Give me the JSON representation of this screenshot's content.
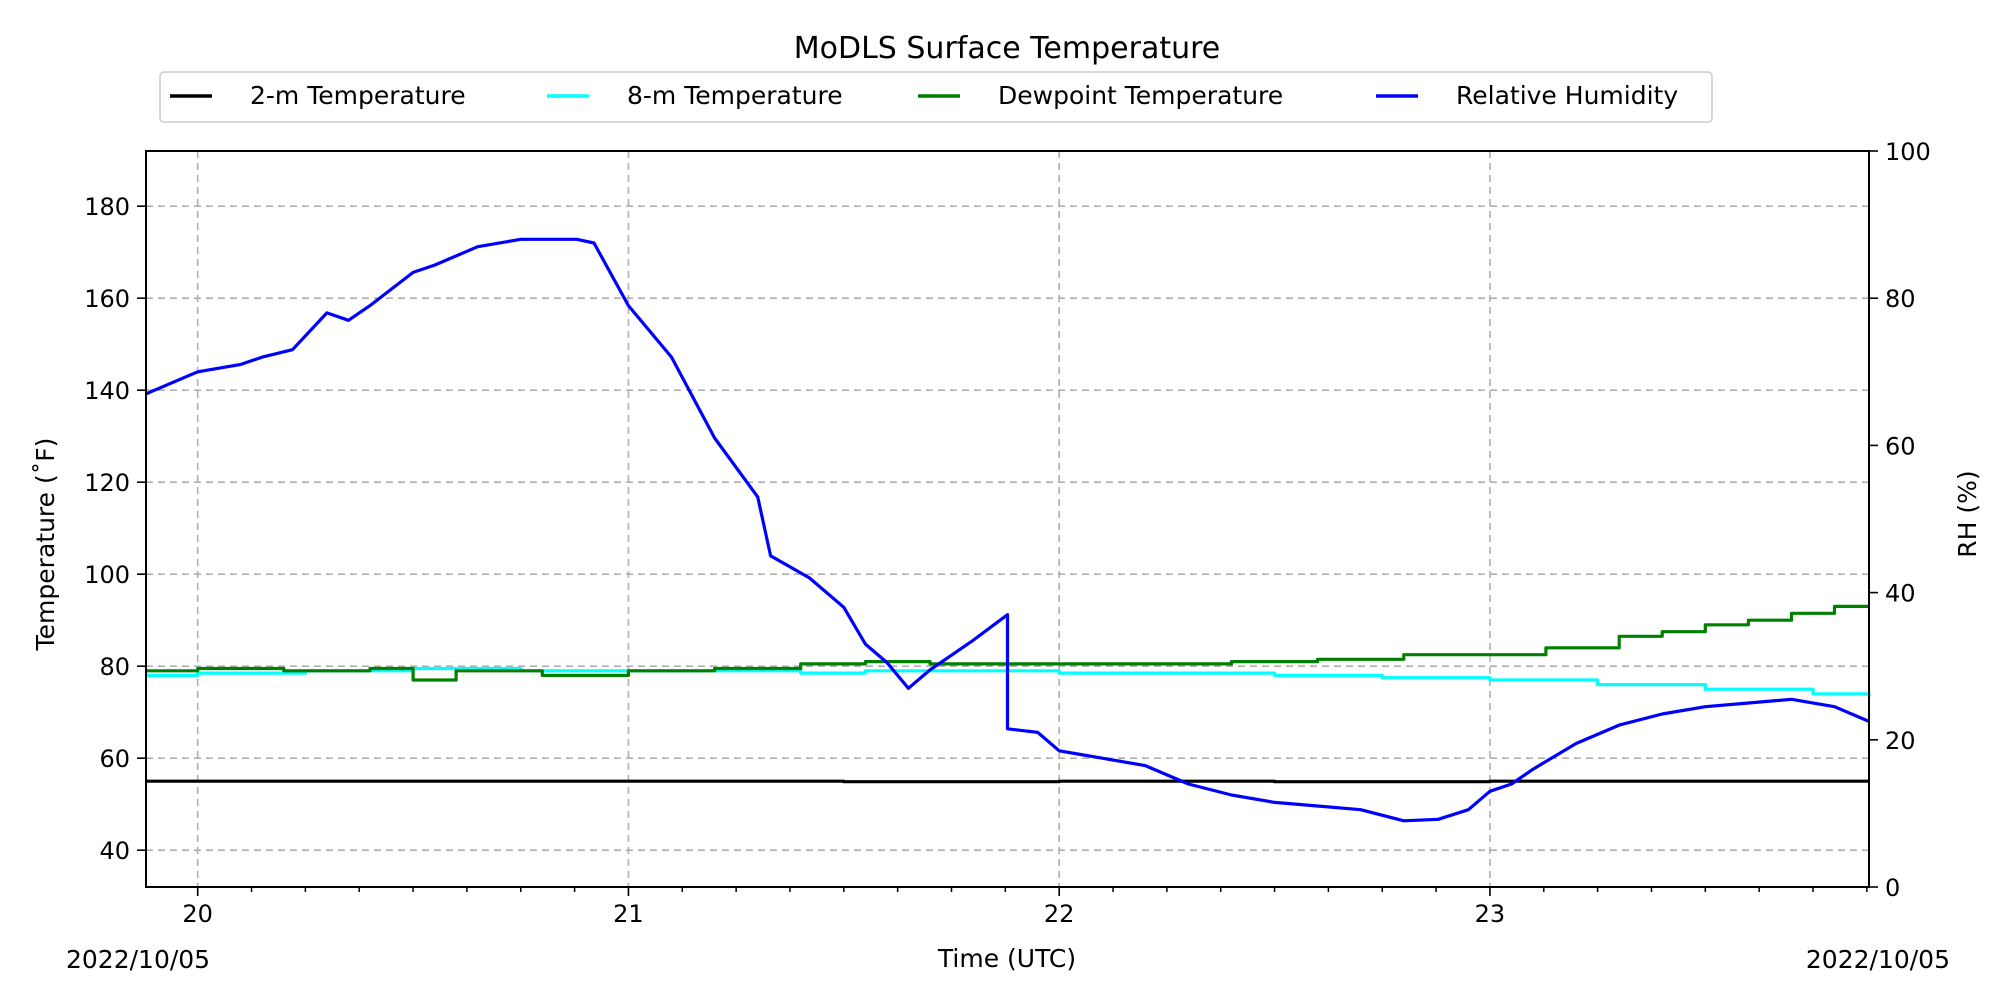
{
  "chart_data": {
    "type": "line",
    "title": "MoDLS Surface Temperature",
    "xlabel": "Time (UTC)",
    "ylabel": "Temperature ($^\\circ$F)",
    "ylabel_display": "Temperature (˚F)",
    "y2label": "RH (%)",
    "date_left": "2022/10/05",
    "date_right": "2022/10/05",
    "xlim": [
      19.88,
      23.88
    ],
    "ylim": [
      32,
      192
    ],
    "y2lim": [
      0,
      100
    ],
    "x_ticks": [
      20,
      21,
      22,
      23
    ],
    "x_tick_labels": [
      "20",
      "21",
      "22",
      "23"
    ],
    "y_ticks": [
      40,
      60,
      80,
      100,
      120,
      140,
      160,
      180
    ],
    "y_tick_labels": [
      "40",
      "60",
      "80",
      "100",
      "120",
      "140",
      "160",
      "180"
    ],
    "y2_ticks": [
      0,
      20,
      40,
      60,
      80,
      100
    ],
    "y2_tick_labels": [
      "0",
      "20",
      "40",
      "60",
      "80",
      "100"
    ],
    "grid": true,
    "legend_position": "top",
    "series": [
      {
        "name": "2-m Temperature",
        "color": "#000000",
        "axis": "left",
        "x": [
          19.88,
          20.5,
          21.0,
          21.5,
          22.0,
          22.5,
          23.0,
          23.5,
          23.88
        ],
        "y": [
          55,
          55,
          55,
          54.9,
          55,
          54.9,
          55,
          55,
          55
        ]
      },
      {
        "name": "8-m Temperature",
        "color": "#00ffff",
        "axis": "left",
        "x": [
          19.88,
          20.0,
          20.25,
          20.5,
          20.75,
          21.0,
          21.25,
          21.4,
          21.55,
          21.75,
          22.0,
          22.25,
          22.5,
          22.75,
          23.0,
          23.25,
          23.5,
          23.75,
          23.88
        ],
        "y": [
          78,
          78.5,
          79,
          79.5,
          79,
          79,
          79,
          78.5,
          79,
          79,
          78.5,
          78.5,
          78,
          77.5,
          77,
          76,
          75,
          74,
          73.5
        ]
      },
      {
        "name": "Dewpoint Temperature",
        "color": "#008000",
        "axis": "left",
        "x": [
          19.88,
          20.0,
          20.2,
          20.4,
          20.5,
          20.6,
          20.8,
          21.0,
          21.2,
          21.4,
          21.55,
          21.7,
          21.9,
          22.2,
          22.4,
          22.6,
          22.8,
          22.98,
          23.13,
          23.3,
          23.4,
          23.5,
          23.6,
          23.7,
          23.8,
          23.88
        ],
        "y": [
          79,
          79.5,
          79,
          79.5,
          77,
          79,
          78,
          79,
          79.5,
          80.5,
          81,
          80.5,
          80.5,
          80.5,
          81,
          81.5,
          82.5,
          82.5,
          84,
          86.5,
          87.5,
          89,
          90,
          91.5,
          93,
          93
        ]
      },
      {
        "name": "Relative Humidity",
        "color": "#0000ff",
        "axis": "right",
        "x": [
          19.88,
          19.9,
          20.0,
          20.1,
          20.15,
          20.22,
          20.3,
          20.35,
          20.4,
          20.5,
          20.55,
          20.65,
          20.75,
          20.88,
          20.92,
          21.0,
          21.1,
          21.2,
          21.3,
          21.33,
          21.42,
          21.5,
          21.55,
          21.6,
          21.65,
          21.7,
          21.8,
          21.88,
          21.88,
          21.95,
          22.0,
          22.05,
          22.1,
          22.2,
          22.3,
          22.4,
          22.5,
          22.6,
          22.7,
          22.8,
          22.88,
          22.95,
          23.0,
          23.05,
          23.1,
          23.2,
          23.3,
          23.4,
          23.5,
          23.6,
          23.7,
          23.8,
          23.88
        ],
        "y": [
          67,
          67.5,
          70,
          71,
          72,
          73,
          78,
          77,
          79,
          83.5,
          84.5,
          87,
          88,
          88,
          87.5,
          79,
          72,
          61,
          53,
          45,
          42,
          38,
          33,
          30.5,
          27,
          29.5,
          33.5,
          37,
          21.5,
          21,
          18.5,
          18,
          17.5,
          16.5,
          14,
          12.5,
          11.5,
          11,
          10.5,
          9,
          9.2,
          10.5,
          13,
          14,
          16,
          19.5,
          22,
          23.5,
          24.5,
          25,
          25.5,
          24.5,
          22.5
        ]
      }
    ]
  }
}
